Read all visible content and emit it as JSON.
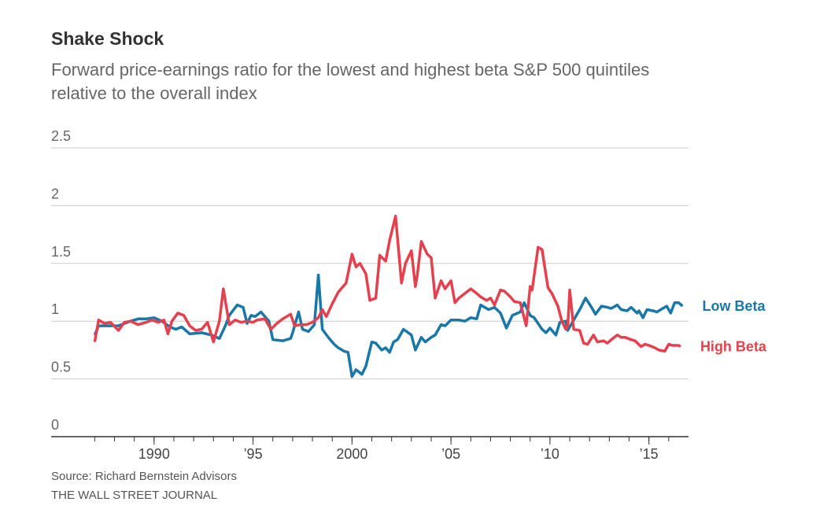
{
  "chart_data": {
    "type": "line",
    "title": "Shake Shock",
    "subtitle": "Forward price-earnings ratio for the lowest and highest beta S&P 500 quintiles relative to the overall index",
    "source": "Source: Richard Bernstein Advisors",
    "publisher": "THE WALL STREET JOURNAL",
    "xlim": [
      1984.8,
      2017
    ],
    "xticks": [
      1990,
      {
        "value": 1995,
        "label": "’95"
      },
      2000,
      {
        "value": 2005,
        "label": "’05"
      },
      {
        "value": 2010,
        "label": "’10"
      },
      {
        "value": 2015,
        "label": "’15"
      }
    ],
    "xminorticks": [
      1987,
      1988,
      1989,
      1990,
      1991,
      1992,
      1993,
      1994,
      1995,
      1996,
      1997,
      1998,
      1999,
      2000,
      2001,
      2002,
      2003,
      2004,
      2005,
      2006,
      2007,
      2008,
      2009,
      2010,
      2011,
      2012,
      2013,
      2014,
      2015,
      2016
    ],
    "ylim": [
      0,
      2.5
    ],
    "yticks": [
      0,
      0.5,
      1.0,
      1.5,
      2.0,
      2.5
    ],
    "grid": true,
    "series": [
      {
        "name": "Low Beta",
        "color": "#1a78a8",
        "x": [
          1987.0,
          1987.2,
          1988.2,
          1988.8,
          1989.2,
          1989.6,
          1990.0,
          1990.4,
          1990.8,
          1991.1,
          1991.4,
          1991.8,
          1992.4,
          1992.9,
          1993.3,
          1993.6,
          1993.8,
          1994.2,
          1994.5,
          1994.7,
          1994.9,
          1995.1,
          1995.4,
          1995.6,
          1995.8,
          1996.0,
          1996.5,
          1996.9,
          1997.0,
          1997.3,
          1997.5,
          1997.8,
          1998.1,
          1998.3,
          1998.5,
          1998.8,
          1999.1,
          1999.3,
          1999.6,
          1999.8,
          2000.0,
          2000.2,
          2000.5,
          2000.7,
          2001.0,
          2001.2,
          2001.5,
          2001.7,
          2001.9,
          2002.1,
          2002.3,
          2002.6,
          2003.0,
          2003.2,
          2003.5,
          2003.7,
          2004.0,
          2004.2,
          2004.5,
          2004.7,
          2005.0,
          2005.4,
          2005.7,
          2006.0,
          2006.3,
          2006.5,
          2006.9,
          2007.2,
          2007.5,
          2007.8,
          2008.1,
          2008.5,
          2008.7,
          2009.0,
          2009.2,
          2009.6,
          2009.8,
          2010.0,
          2010.3,
          2010.5,
          2010.8,
          2010.9,
          2011.3,
          2011.5,
          2011.8,
          2012.1,
          2012.3,
          2012.6,
          2012.9,
          2013.1,
          2013.4,
          2013.6,
          2013.9,
          2014.1,
          2014.4,
          2014.5,
          2014.7,
          2014.9,
          2015.2,
          2015.4,
          2015.7,
          2015.9,
          2016.1,
          2016.3,
          2016.5,
          2016.7
        ],
        "values": [
          0.88,
          0.96,
          0.96,
          1.0,
          1.02,
          1.02,
          1.03,
          1.0,
          0.95,
          0.93,
          0.95,
          0.89,
          0.9,
          0.88,
          0.85,
          0.96,
          1.05,
          1.14,
          1.12,
          0.98,
          1.05,
          1.04,
          1.08,
          1.04,
          1.0,
          0.84,
          0.83,
          0.85,
          0.9,
          1.08,
          0.93,
          0.91,
          0.97,
          1.4,
          0.93,
          0.86,
          0.8,
          0.77,
          0.74,
          0.73,
          0.52,
          0.58,
          0.54,
          0.61,
          0.82,
          0.81,
          0.75,
          0.77,
          0.73,
          0.82,
          0.84,
          0.93,
          0.88,
          0.75,
          0.86,
          0.82,
          0.86,
          0.88,
          0.97,
          0.96,
          1.01,
          1.01,
          1.0,
          1.03,
          1.02,
          1.14,
          1.1,
          1.12,
          1.07,
          0.94,
          1.05,
          1.08,
          1.16,
          1.05,
          1.03,
          0.93,
          0.9,
          0.94,
          0.88,
          0.99,
          1.0,
          0.92,
          1.04,
          1.1,
          1.2,
          1.12,
          1.06,
          1.13,
          1.12,
          1.11,
          1.14,
          1.1,
          1.09,
          1.12,
          1.07,
          1.09,
          1.03,
          1.1,
          1.09,
          1.08,
          1.11,
          1.13,
          1.07,
          1.16,
          1.16,
          1.13
        ]
      },
      {
        "name": "High Beta",
        "color": "#e5404e",
        "x": [
          1987.0,
          1987.2,
          1987.5,
          1987.8,
          1988.2,
          1988.5,
          1988.8,
          1989.2,
          1989.6,
          1989.9,
          1990.2,
          1990.5,
          1990.7,
          1990.9,
          1991.2,
          1991.5,
          1991.8,
          1992.1,
          1992.4,
          1992.7,
          1993.0,
          1993.3,
          1993.5,
          1993.8,
          1994.1,
          1994.4,
          1994.7,
          1995.0,
          1995.2,
          1995.6,
          1995.9,
          1996.2,
          1996.5,
          1996.9,
          1997.1,
          1997.4,
          1997.7,
          1998.0,
          1998.3,
          1998.5,
          1998.7,
          1999.0,
          1999.3,
          1999.7,
          2000.0,
          2000.2,
          2000.4,
          2000.7,
          2000.9,
          2001.2,
          2001.4,
          2001.7,
          2001.9,
          2002.2,
          2002.5,
          2002.7,
          2003.0,
          2003.2,
          2003.3,
          2003.5,
          2003.8,
          2004.0,
          2004.2,
          2004.5,
          2004.7,
          2005.0,
          2005.2,
          2005.4,
          2005.7,
          2006.0,
          2006.3,
          2006.5,
          2006.8,
          2007.0,
          2007.2,
          2007.5,
          2007.7,
          2008.0,
          2008.2,
          2008.5,
          2008.8,
          2009.0,
          2009.1,
          2009.4,
          2009.6,
          2009.9,
          2010.1,
          2010.4,
          2010.6,
          2010.8,
          2010.9,
          2011.0,
          2011.2,
          2011.5,
          2011.7,
          2011.9,
          2012.2,
          2012.4,
          2012.7,
          2012.9,
          2013.1,
          2013.4,
          2013.6,
          2013.8,
          2014.1,
          2014.3,
          2014.6,
          2014.8,
          2015.0,
          2015.3,
          2015.5,
          2015.8,
          2016.0,
          2016.2,
          2016.5,
          2016.6
        ],
        "values": [
          0.82,
          1.01,
          0.98,
          0.99,
          0.92,
          0.99,
          1.0,
          0.97,
          0.99,
          1.01,
          0.99,
          1.01,
          0.89,
          1.0,
          1.07,
          1.05,
          0.96,
          0.92,
          0.93,
          0.99,
          0.82,
          1.0,
          1.28,
          0.97,
          1.01,
          0.99,
          1.0,
          0.99,
          1.01,
          1.02,
          0.93,
          0.98,
          1.02,
          1.06,
          0.96,
          0.97,
          0.97,
          0.99,
          1.03,
          1.1,
          1.04,
          1.15,
          1.25,
          1.33,
          1.58,
          1.47,
          1.5,
          1.41,
          1.18,
          1.2,
          1.57,
          1.52,
          1.7,
          1.91,
          1.33,
          1.5,
          1.61,
          1.3,
          1.4,
          1.69,
          1.58,
          1.55,
          1.2,
          1.35,
          1.28,
          1.35,
          1.16,
          1.2,
          1.24,
          1.28,
          1.24,
          1.21,
          1.18,
          1.2,
          1.14,
          1.27,
          1.26,
          1.21,
          1.17,
          1.16,
          0.96,
          1.3,
          1.27,
          1.64,
          1.62,
          1.29,
          1.24,
          1.13,
          1.0,
          0.93,
          0.96,
          1.27,
          0.93,
          0.92,
          0.81,
          0.8,
          0.88,
          0.82,
          0.83,
          0.81,
          0.84,
          0.88,
          0.86,
          0.86,
          0.84,
          0.83,
          0.78,
          0.8,
          0.79,
          0.77,
          0.75,
          0.74,
          0.8,
          0.79,
          0.79,
          0.78
        ]
      }
    ]
  }
}
